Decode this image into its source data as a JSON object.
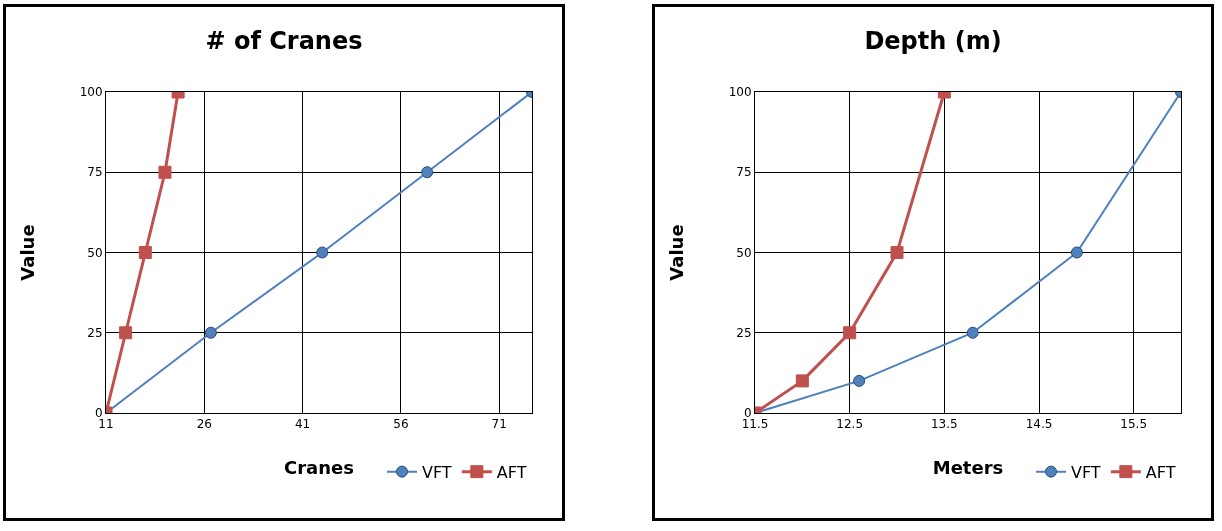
{
  "chart_data": [
    {
      "type": "line",
      "title": "# of Cranes",
      "xlabel": "Cranes",
      "ylabel": "Value",
      "xlim": [
        11,
        76
      ],
      "xticks": [
        11,
        26,
        41,
        56,
        71
      ],
      "ylim": [
        0,
        100
      ],
      "yticks": [
        0,
        25,
        50,
        75,
        100
      ],
      "grid": true,
      "legend": "bottom right",
      "series": [
        {
          "name": "VFT",
          "color": "#4f81bd",
          "marker": "circle",
          "x": [
            11,
            27,
            44,
            60,
            76
          ],
          "values": [
            0,
            25,
            50,
            75,
            100
          ]
        },
        {
          "name": "AFT",
          "color": "#c0504d",
          "marker": "square",
          "x": [
            11,
            14,
            17,
            20,
            22
          ],
          "values": [
            0,
            25,
            50,
            75,
            100
          ]
        }
      ]
    },
    {
      "type": "line",
      "title": "Depth (m)",
      "xlabel": "Meters",
      "ylabel": "Value",
      "xlim": [
        11.5,
        16
      ],
      "xticks": [
        11.5,
        12.5,
        13.5,
        14.5,
        15.5
      ],
      "ylim": [
        0,
        100
      ],
      "yticks": [
        0,
        25,
        50,
        75,
        100
      ],
      "grid": true,
      "legend": "bottom right",
      "series": [
        {
          "name": "VFT",
          "color": "#4f81bd",
          "marker": "circle",
          "x": [
            11.5,
            12.6,
            13.8,
            14.9,
            16
          ],
          "values": [
            0,
            10,
            25,
            50,
            100
          ]
        },
        {
          "name": "AFT",
          "color": "#c0504d",
          "marker": "square",
          "x": [
            11.5,
            12,
            12.5,
            13,
            13.5
          ],
          "values": [
            0,
            10,
            25,
            50,
            100
          ]
        }
      ]
    }
  ]
}
